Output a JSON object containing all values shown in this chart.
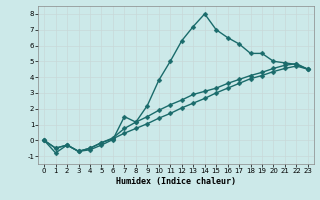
{
  "title": "",
  "xlabel": "Humidex (Indice chaleur)",
  "ylabel": "",
  "bg_color": "#cce9e9",
  "grid_color": "#b0d8d8",
  "line_color": "#1a6b6b",
  "xlim": [
    -0.5,
    23.5
  ],
  "ylim": [
    -1.5,
    8.5
  ],
  "xticks": [
    0,
    1,
    2,
    3,
    4,
    5,
    6,
    7,
    8,
    9,
    10,
    11,
    12,
    13,
    14,
    15,
    16,
    17,
    18,
    19,
    20,
    21,
    22,
    23
  ],
  "yticks": [
    -1,
    0,
    1,
    2,
    3,
    4,
    5,
    6,
    7,
    8
  ],
  "line1_x": [
    0,
    1,
    2,
    3,
    4,
    5,
    6,
    7,
    8,
    9,
    10,
    11,
    12,
    13,
    14,
    15,
    16,
    17,
    18,
    19,
    20,
    21,
    22,
    23
  ],
  "line1_y": [
    0.0,
    -0.8,
    -0.3,
    -0.7,
    -0.6,
    -0.3,
    0.05,
    1.5,
    1.15,
    2.2,
    3.8,
    5.0,
    6.3,
    7.2,
    8.0,
    7.0,
    6.5,
    6.1,
    5.5,
    5.5,
    5.0,
    4.9,
    4.8,
    4.5
  ],
  "line2_x": [
    0,
    1,
    2,
    3,
    4,
    5,
    6,
    7,
    8,
    9,
    10,
    11,
    12,
    13,
    14,
    15,
    16,
    17,
    18,
    19,
    20,
    21,
    22,
    23
  ],
  "line2_y": [
    0.0,
    -0.5,
    -0.3,
    -0.7,
    -0.5,
    -0.15,
    0.15,
    0.75,
    1.15,
    1.5,
    1.9,
    2.25,
    2.55,
    2.9,
    3.1,
    3.3,
    3.6,
    3.85,
    4.1,
    4.3,
    4.55,
    4.75,
    4.85,
    4.5
  ],
  "line3_x": [
    0,
    1,
    2,
    3,
    4,
    5,
    6,
    7,
    8,
    9,
    10,
    11,
    12,
    13,
    14,
    15,
    16,
    17,
    18,
    19,
    20,
    21,
    22,
    23
  ],
  "line3_y": [
    0.0,
    -0.5,
    -0.3,
    -0.7,
    -0.5,
    -0.15,
    0.1,
    0.45,
    0.75,
    1.05,
    1.4,
    1.7,
    2.05,
    2.35,
    2.65,
    3.0,
    3.3,
    3.6,
    3.9,
    4.1,
    4.35,
    4.55,
    4.7,
    4.5
  ],
  "marker": "D",
  "markersize": 2.5,
  "linewidth": 1.0
}
